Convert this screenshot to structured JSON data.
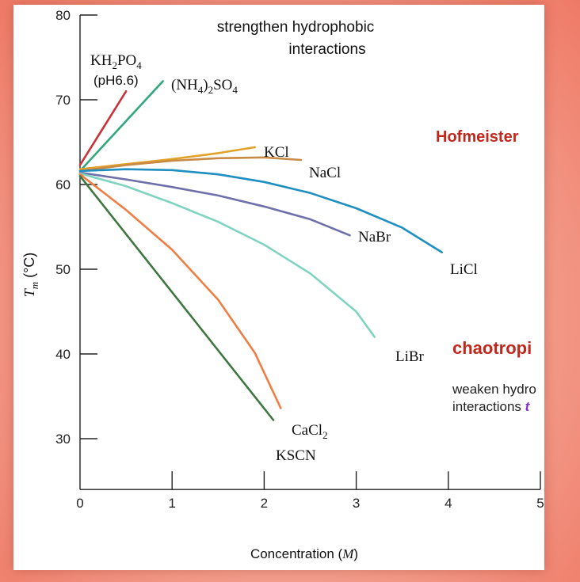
{
  "chart_data": {
    "type": "line",
    "xlabel": "Concentration (M)",
    "ylabel": "Tm (°C)",
    "xlim": [
      0,
      5
    ],
    "ylim": [
      24,
      80
    ],
    "x_ticks": [
      "0",
      "1",
      "2",
      "3",
      "4",
      "5"
    ],
    "y_ticks": [
      "30",
      "40",
      "50",
      "60",
      "70",
      "80"
    ],
    "annotation_top": [
      "strengthen hydrophobic",
      "interactions"
    ],
    "series": [
      {
        "name": "KH2PO4 (pH6.6)",
        "color": "#c83238",
        "x": [
          0,
          0.5
        ],
        "y": [
          62.3,
          71.0
        ]
      },
      {
        "name": "(NH4)2SO4",
        "color": "#2fa87c",
        "x": [
          0,
          0.9
        ],
        "y": [
          61.6,
          72.2
        ]
      },
      {
        "name": "KCl",
        "color": "#e3a12a",
        "x": [
          0,
          0.5,
          1.0,
          1.5,
          1.9
        ],
        "y": [
          61.8,
          62.4,
          63.0,
          63.7,
          64.4
        ]
      },
      {
        "name": "NaCl",
        "color": "#c88a45",
        "x": [
          0,
          0.5,
          1.0,
          1.5,
          2.0,
          2.4
        ],
        "y": [
          61.6,
          62.3,
          62.8,
          63.1,
          63.2,
          62.9
        ]
      },
      {
        "name": "LiCl",
        "color": "#1e8fc0",
        "x": [
          0,
          0.5,
          1.0,
          1.5,
          2.0,
          2.5,
          3.0,
          3.5,
          3.93
        ],
        "y": [
          61.6,
          61.8,
          61.7,
          61.2,
          60.3,
          59.0,
          57.2,
          54.9,
          52.0
        ]
      },
      {
        "name": "NaBr",
        "color": "#6f6faa",
        "x": [
          0,
          0.5,
          1.0,
          1.5,
          2.0,
          2.5,
          2.93
        ],
        "y": [
          61.4,
          60.6,
          59.7,
          58.7,
          57.4,
          55.9,
          54.0
        ]
      },
      {
        "name": "LiBr",
        "color": "#7fd4c0",
        "x": [
          0,
          0.5,
          1.0,
          1.5,
          2.0,
          2.5,
          3.0,
          3.2
        ],
        "y": [
          61.3,
          59.8,
          57.8,
          55.6,
          52.9,
          49.5,
          45.0,
          42.0
        ]
      },
      {
        "name": "CaCl2",
        "color": "#ee7e44",
        "x": [
          0,
          0.5,
          1.0,
          1.5,
          1.9,
          2.18
        ],
        "y": [
          61.2,
          57.0,
          52.3,
          46.4,
          40.1,
          33.6
        ]
      },
      {
        "name": "KSCN",
        "color": "#3f7740",
        "x": [
          0,
          2.1
        ],
        "y": [
          61.0,
          32.2
        ]
      }
    ],
    "labels": {
      "kh2po4": "KH2PO4",
      "kh2po4_note": "(pH6.6)",
      "nh4so4": "(NH4)2SO4",
      "kcl": "KCl",
      "nacl": "NaCl",
      "licl": "LiCl",
      "nabr": "NaBr",
      "libr": "LiBr",
      "cacl2": "CaCl2",
      "kscn": "KSCN"
    }
  },
  "overlay": {
    "hofmeister": "Hofmeister",
    "chaotropic": "chaotropi",
    "weaken_line1": "weaken hydro",
    "weaken_line2": "interactions ",
    "weaken_line2_tail": "t"
  }
}
